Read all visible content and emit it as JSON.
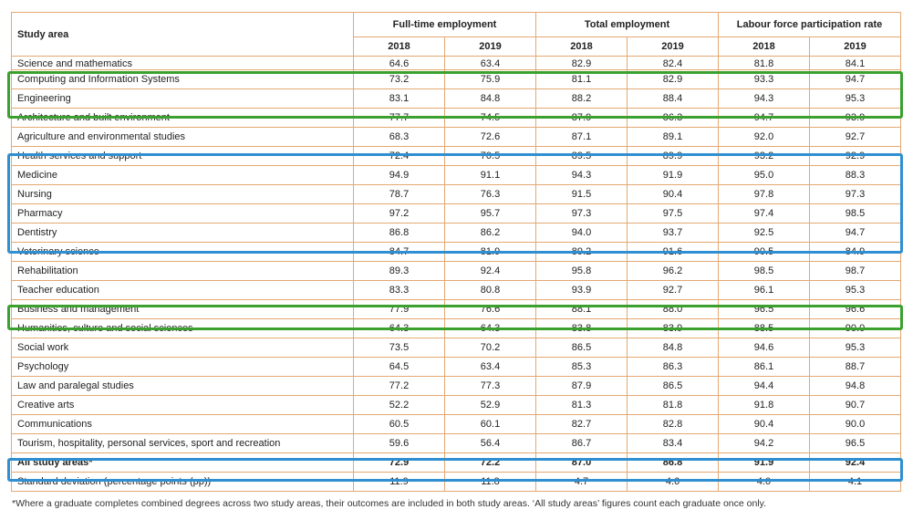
{
  "table": {
    "area_header": "Study area",
    "groups": [
      "Full-time employment",
      "Total employment",
      "Labour force participation rate"
    ],
    "years": [
      "2018",
      "2019",
      "2018",
      "2019",
      "2018",
      "2019"
    ],
    "rows": [
      {
        "area": "Science and mathematics",
        "values": [
          "64.6",
          "63.4",
          "82.9",
          "82.4",
          "81.8",
          "84.1"
        ]
      },
      {
        "area": "Computing and Information Systems",
        "values": [
          "73.2",
          "75.9",
          "81.1",
          "82.9",
          "93.3",
          "94.7"
        ]
      },
      {
        "area": "Engineering",
        "values": [
          "83.1",
          "84.8",
          "88.2",
          "88.4",
          "94.3",
          "95.3"
        ]
      },
      {
        "area": "Architecture and built environment",
        "values": [
          "77.7",
          "74.5",
          "87.9",
          "86.3",
          "94.7",
          "93.9"
        ]
      },
      {
        "area": "Agriculture and environmental studies",
        "values": [
          "68.3",
          "72.6",
          "87.1",
          "89.1",
          "92.0",
          "92.7"
        ]
      },
      {
        "area": "Health services and support",
        "values": [
          "72.4",
          "70.5",
          "89.5",
          "89.9",
          "93.2",
          "92.9"
        ]
      },
      {
        "area": "Medicine",
        "values": [
          "94.9",
          "91.1",
          "94.3",
          "91.9",
          "95.0",
          "88.3"
        ]
      },
      {
        "area": "Nursing",
        "values": [
          "78.7",
          "76.3",
          "91.5",
          "90.4",
          "97.8",
          "97.3"
        ]
      },
      {
        "area": "Pharmacy",
        "values": [
          "97.2",
          "95.7",
          "97.3",
          "97.5",
          "97.4",
          "98.5"
        ]
      },
      {
        "area": "Dentistry",
        "values": [
          "86.8",
          "86.2",
          "94.0",
          "93.7",
          "92.5",
          "94.7"
        ]
      },
      {
        "area": "Veterinary science",
        "values": [
          "84.7",
          "81.9",
          "89.2",
          "91.6",
          "90.5",
          "84.9"
        ]
      },
      {
        "area": "Rehabilitation",
        "values": [
          "89.3",
          "92.4",
          "95.8",
          "96.2",
          "98.5",
          "98.7"
        ]
      },
      {
        "area": "Teacher education",
        "values": [
          "83.3",
          "80.8",
          "93.9",
          "92.7",
          "96.1",
          "95.3"
        ]
      },
      {
        "area": "Business and management",
        "values": [
          "77.9",
          "76.6",
          "88.1",
          "88.0",
          "96.5",
          "96.6"
        ]
      },
      {
        "area": "Humanities, culture and social sciences",
        "values": [
          "64.3",
          "64.3",
          "83.8",
          "83.9",
          "88.5",
          "90.0"
        ]
      },
      {
        "area": "Social work",
        "values": [
          "73.5",
          "70.2",
          "86.5",
          "84.8",
          "94.6",
          "95.3"
        ]
      },
      {
        "area": "Psychology",
        "values": [
          "64.5",
          "63.4",
          "85.3",
          "86.3",
          "86.1",
          "88.7"
        ]
      },
      {
        "area": "Law and paralegal studies",
        "values": [
          "77.2",
          "77.3",
          "87.9",
          "86.5",
          "94.4",
          "94.8"
        ]
      },
      {
        "area": "Creative arts",
        "values": [
          "52.2",
          "52.9",
          "81.3",
          "81.8",
          "91.8",
          "90.7"
        ]
      },
      {
        "area": "Communications",
        "values": [
          "60.5",
          "60.1",
          "82.7",
          "82.8",
          "90.4",
          "90.0"
        ]
      },
      {
        "area": "Tourism, hospitality, personal services, sport and recreation",
        "values": [
          "59.6",
          "56.4",
          "86.7",
          "83.4",
          "94.2",
          "96.5"
        ]
      },
      {
        "area": "All study areas*",
        "values": [
          "72.9",
          "72.2",
          "87.0",
          "86.8",
          "91.9",
          "92.4"
        ]
      },
      {
        "area": "Standard deviation (percentage points (pp))",
        "values": [
          "11.9",
          "11.8",
          "4.7",
          "4.6",
          "4.0",
          "4.1"
        ]
      }
    ]
  },
  "footnote": "*Where a graduate completes combined degrees across two study areas, their outcomes are included in both study areas. ‘All study areas’ figures count each graduate once only.",
  "colors": {
    "border": "#e4a873",
    "green_box": "#3aa12e",
    "blue_box": "#2f8fd0"
  }
}
